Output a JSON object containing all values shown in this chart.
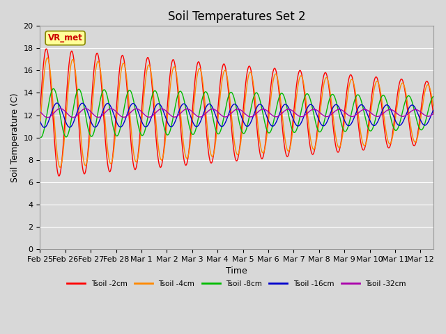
{
  "title": "Soil Temperatures Set 2",
  "xlabel": "Time",
  "ylabel": "Soil Temperature (C)",
  "annotation": "VR_met",
  "ylim": [
    0,
    20
  ],
  "yticks": [
    0,
    2,
    4,
    6,
    8,
    10,
    12,
    14,
    16,
    18,
    20
  ],
  "n_days": 15.5,
  "series_colors": [
    "#ff0000",
    "#ff8800",
    "#00bb00",
    "#0000cc",
    "#aa00aa"
  ],
  "series_labels": [
    "Tsoil -2cm",
    "Tsoil -4cm",
    "Tsoil -8cm",
    "Tsoil -16cm",
    "Tsoil -32cm"
  ],
  "xtick_labels": [
    "Feb 25",
    "Feb 26",
    "Feb 27",
    "Feb 28",
    "Mar 1",
    "Mar 2",
    "Mar 3",
    "Mar 4",
    "Mar 5",
    "Mar 6",
    "Mar 7",
    "Mar 8",
    "Mar 9",
    "Mar 10",
    "Mar 11",
    "Mar 12"
  ],
  "background_color": "#d8d8d8",
  "plot_bg_color": "#d8d8d8",
  "title_fontsize": 12,
  "label_fontsize": 9,
  "tick_fontsize": 8,
  "means": [
    12.2,
    12.2,
    12.2,
    12.0,
    12.2
  ],
  "amp_starts": [
    5.8,
    5.0,
    2.2,
    1.1,
    0.4
  ],
  "amp_ends": [
    2.8,
    2.5,
    1.5,
    0.9,
    0.3
  ],
  "phases": [
    0.0,
    0.04,
    0.28,
    0.42,
    0.55
  ],
  "n_pts": 2000
}
